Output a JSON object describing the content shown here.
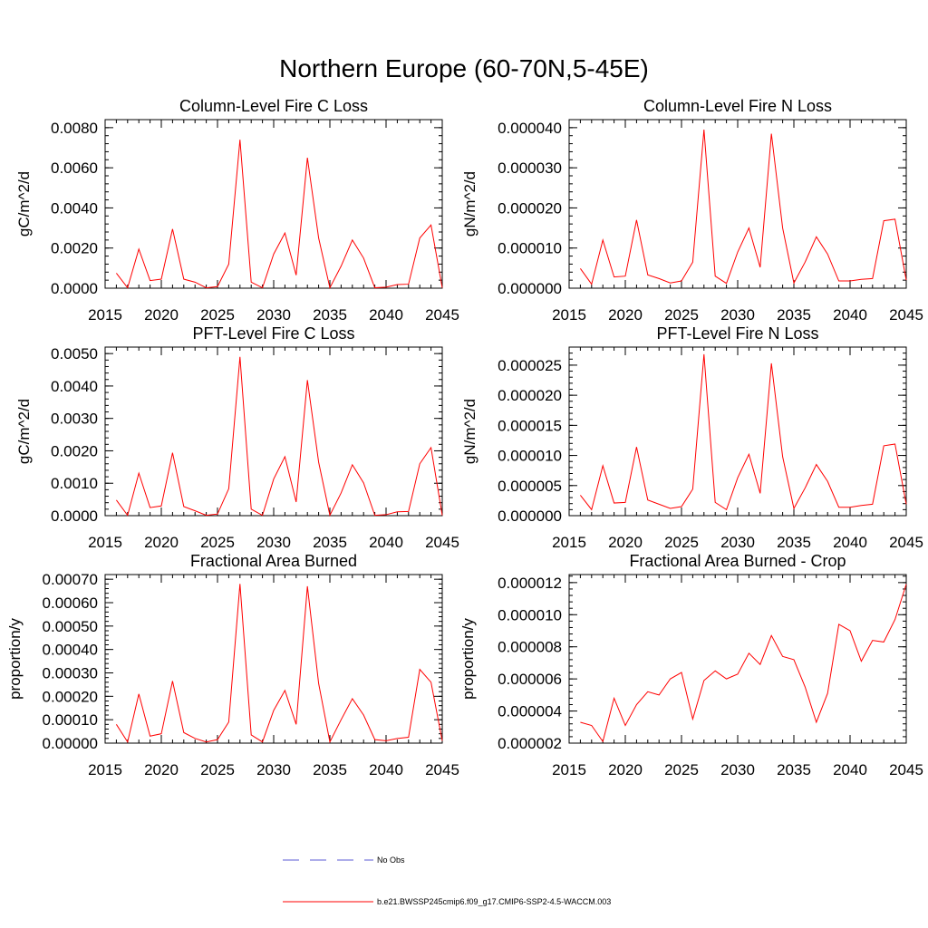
{
  "figure": {
    "title": "Northern Europe (60-70N,5-45E)"
  },
  "colors": {
    "model_line": "#ff0000",
    "obs_line": "#5b5bd6",
    "axis": "#000000"
  },
  "legend": {
    "obs_label": "No Obs",
    "model_label": "b.e21.BWSSP245cmip6.f09_g17.CMIP6-SSP2-4.5-WACCM.003"
  },
  "chart_data": [
    {
      "type": "line",
      "title": "Column-Level Fire C Loss",
      "xlabel": "",
      "ylabel": "gC/m^2/d",
      "xlim": [
        2015,
        2045
      ],
      "ylim": [
        0,
        0.0084
      ],
      "xticks": [
        2015,
        2020,
        2025,
        2030,
        2035,
        2040,
        2045
      ],
      "yticks": [
        0,
        0.002,
        0.004,
        0.006,
        0.008
      ],
      "ytick_labels": [
        "0.0000",
        "0.0020",
        "0.0040",
        "0.0060",
        "0.0080"
      ],
      "x": [
        2016,
        2017,
        2018,
        2019,
        2020,
        2021,
        2022,
        2023,
        2024,
        2025,
        2026,
        2027,
        2028,
        2029,
        2030,
        2031,
        2032,
        2033,
        2034,
        2035,
        2036,
        2037,
        2038,
        2039,
        2040,
        2041,
        2042,
        2043,
        2044,
        2045
      ],
      "series": [
        {
          "name": "b.e21.BWSSP245cmip6.f09_g17.CMIP6-SSP2-4.5-WACCM.003",
          "values": [
            0.00075,
            2e-05,
            0.00195,
            0.00038,
            0.00045,
            0.00295,
            0.00045,
            0.0003,
            2e-05,
            8e-05,
            0.0012,
            0.0074,
            0.0003,
            2e-05,
            0.0017,
            0.00275,
            0.00065,
            0.0065,
            0.0025,
            2e-05,
            0.0011,
            0.0024,
            0.0015,
            2e-05,
            5e-05,
            0.00018,
            0.0002,
            0.0025,
            0.00315,
            2e-05
          ]
        }
      ]
    },
    {
      "type": "line",
      "title": "Column-Level Fire N Loss",
      "xlabel": "",
      "ylabel": "gN/m^2/d",
      "xlim": [
        2015,
        2045
      ],
      "ylim": [
        0,
        4.2e-05
      ],
      "xticks": [
        2015,
        2020,
        2025,
        2030,
        2035,
        2040,
        2045
      ],
      "yticks": [
        0,
        1e-05,
        2e-05,
        3e-05,
        4e-05
      ],
      "ytick_labels": [
        "0.000000",
        "0.000010",
        "0.000020",
        "0.000030",
        "0.000040"
      ],
      "x": [
        2016,
        2017,
        2018,
        2019,
        2020,
        2021,
        2022,
        2023,
        2024,
        2025,
        2026,
        2027,
        2028,
        2029,
        2030,
        2031,
        2032,
        2033,
        2034,
        2035,
        2036,
        2037,
        2038,
        2039,
        2040,
        2041,
        2042,
        2043,
        2044,
        2045
      ],
      "series": [
        {
          "name": "b.e21.BWSSP245cmip6.f09_g17.CMIP6-SSP2-4.5-WACCM.003",
          "values": [
            4.9e-06,
            1e-06,
            1.2e-05,
            2.8e-06,
            3e-06,
            1.7e-05,
            3.3e-06,
            2.4e-06,
            1.3e-06,
            1.8e-06,
            6.5e-06,
            3.95e-05,
            3e-06,
            1.2e-06,
            9e-06,
            1.5e-05,
            5.2e-06,
            3.85e-05,
            1.5e-05,
            1.3e-06,
            6.5e-06,
            1.28e-05,
            8.5e-06,
            1.8e-06,
            1.8e-06,
            2.2e-06,
            2.4e-06,
            1.68e-05,
            1.72e-05,
            2e-06
          ]
        }
      ]
    },
    {
      "type": "line",
      "title": "PFT-Level Fire C Loss",
      "xlabel": "",
      "ylabel": "gC/m^2/d",
      "xlim": [
        2015,
        2045
      ],
      "ylim": [
        0,
        0.0052
      ],
      "xticks": [
        2015,
        2020,
        2025,
        2030,
        2035,
        2040,
        2045
      ],
      "yticks": [
        0,
        0.001,
        0.002,
        0.003,
        0.004,
        0.005
      ],
      "ytick_labels": [
        "0.0000",
        "0.0010",
        "0.0020",
        "0.0030",
        "0.0040",
        "0.0050"
      ],
      "x": [
        2016,
        2017,
        2018,
        2019,
        2020,
        2021,
        2022,
        2023,
        2024,
        2025,
        2026,
        2027,
        2028,
        2029,
        2030,
        2031,
        2032,
        2033,
        2034,
        2035,
        2036,
        2037,
        2038,
        2039,
        2040,
        2041,
        2042,
        2043,
        2044,
        2045
      ],
      "series": [
        {
          "name": "b.e21.BWSSP245cmip6.f09_g17.CMIP6-SSP2-4.5-WACCM.003",
          "values": [
            0.00048,
            1e-05,
            0.00131,
            0.00025,
            0.0003,
            0.00194,
            0.00028,
            0.00015,
            1e-05,
            5e-05,
            0.00083,
            0.0049,
            0.0002,
            1e-05,
            0.00113,
            0.00182,
            0.00042,
            0.00418,
            0.00165,
            1e-05,
            0.0007,
            0.00157,
            0.00101,
            1e-05,
            3e-05,
            0.00012,
            0.00013,
            0.0016,
            0.0021,
            1e-05
          ]
        }
      ]
    },
    {
      "type": "line",
      "title": "PFT-Level Fire N Loss",
      "xlabel": "",
      "ylabel": "gN/m^2/d",
      "xlim": [
        2015,
        2045
      ],
      "ylim": [
        0,
        2.8e-05
      ],
      "xticks": [
        2015,
        2020,
        2025,
        2030,
        2035,
        2040,
        2045
      ],
      "yticks": [
        0,
        5e-06,
        1e-05,
        1.5e-05,
        2e-05,
        2.5e-05
      ],
      "ytick_labels": [
        "0.000000",
        "0.000005",
        "0.000010",
        "0.000015",
        "0.000020",
        "0.000025"
      ],
      "x": [
        2016,
        2017,
        2018,
        2019,
        2020,
        2021,
        2022,
        2023,
        2024,
        2025,
        2026,
        2027,
        2028,
        2029,
        2030,
        2031,
        2032,
        2033,
        2034,
        2035,
        2036,
        2037,
        2038,
        2039,
        2040,
        2041,
        2042,
        2043,
        2044,
        2045
      ],
      "series": [
        {
          "name": "b.e21.BWSSP245cmip6.f09_g17.CMIP6-SSP2-4.5-WACCM.003",
          "values": [
            3.4e-06,
            1e-06,
            8.3e-06,
            2.1e-06,
            2.2e-06,
            1.14e-05,
            2.6e-06,
            1.9e-06,
            1.2e-06,
            1.5e-06,
            4.4e-06,
            2.68e-05,
            2.2e-06,
            1e-06,
            6.3e-06,
            1.02e-05,
            3.7e-06,
            2.53e-05,
            9.8e-06,
            1.2e-06,
            4.6e-06,
            8.5e-06,
            5.7e-06,
            1.4e-06,
            1.4e-06,
            1.7e-06,
            1.9e-06,
            1.16e-05,
            1.19e-05,
            1.9e-06
          ]
        }
      ]
    },
    {
      "type": "line",
      "title": "Fractional Area Burned",
      "xlabel": "",
      "ylabel": "proportion/y",
      "xlim": [
        2015,
        2045
      ],
      "ylim": [
        0,
        0.00072
      ],
      "xticks": [
        2015,
        2020,
        2025,
        2030,
        2035,
        2040,
        2045
      ],
      "yticks": [
        0,
        0.0001,
        0.0002,
        0.0003,
        0.0004,
        0.0005,
        0.0006,
        0.0007
      ],
      "ytick_labels": [
        "0.00000",
        "0.00010",
        "0.00020",
        "0.00030",
        "0.00040",
        "0.00050",
        "0.00060",
        "0.00070"
      ],
      "x": [
        2016,
        2017,
        2018,
        2019,
        2020,
        2021,
        2022,
        2023,
        2024,
        2025,
        2026,
        2027,
        2028,
        2029,
        2030,
        2031,
        2032,
        2033,
        2034,
        2035,
        2036,
        2037,
        2038,
        2039,
        2040,
        2041,
        2042,
        2043,
        2044,
        2045
      ],
      "series": [
        {
          "name": "b.e21.BWSSP245cmip6.f09_g17.CMIP6-SSP2-4.5-WACCM.003",
          "values": [
            8e-05,
            5e-06,
            0.00021,
            3e-05,
            4e-05,
            0.000265,
            4.5e-05,
            2e-05,
            5e-06,
            1.5e-05,
            9e-05,
            0.00068,
            3.5e-05,
            5e-06,
            0.00014,
            0.000225,
            8e-05,
            0.00067,
            0.000255,
            5e-06,
            0.0001,
            0.00019,
            0.00012,
            1.5e-05,
            1e-05,
            2e-05,
            2.5e-05,
            0.000315,
            0.00026,
            1e-05
          ]
        }
      ]
    },
    {
      "type": "line",
      "title": "Fractional Area Burned - Crop",
      "xlabel": "",
      "ylabel": "proportion/y",
      "xlim": [
        2015,
        2045
      ],
      "ylim": [
        2e-06,
        1.25e-05
      ],
      "xticks": [
        2015,
        2020,
        2025,
        2030,
        2035,
        2040,
        2045
      ],
      "yticks": [
        2e-06,
        4e-06,
        6e-06,
        8e-06,
        1e-05,
        1.2e-05
      ],
      "ytick_labels": [
        "0.000002",
        "0.000004",
        "0.000006",
        "0.000008",
        "0.000010",
        "0.000012"
      ],
      "x": [
        2016,
        2017,
        2018,
        2019,
        2020,
        2021,
        2022,
        2023,
        2024,
        2025,
        2026,
        2027,
        2028,
        2029,
        2030,
        2031,
        2032,
        2033,
        2034,
        2035,
        2036,
        2037,
        2038,
        2039,
        2040,
        2041,
        2042,
        2043,
        2044,
        2045
      ],
      "series": [
        {
          "name": "b.e21.BWSSP245cmip6.f09_g17.CMIP6-SSP2-4.5-WACCM.003",
          "values": [
            3.3e-06,
            3.1e-06,
            2.1e-06,
            4.8e-06,
            3.1e-06,
            4.4e-06,
            5.2e-06,
            5e-06,
            6e-06,
            6.4e-06,
            3.5e-06,
            5.9e-06,
            6.5e-06,
            6e-06,
            6.3e-06,
            7.6e-06,
            6.9e-06,
            8.7e-06,
            7.4e-06,
            7.2e-06,
            5.5e-06,
            3.3e-06,
            5.1e-06,
            9.4e-06,
            9e-06,
            7.1e-06,
            8.4e-06,
            8.3e-06,
            9.7e-06,
            1.19e-05
          ]
        }
      ]
    }
  ]
}
